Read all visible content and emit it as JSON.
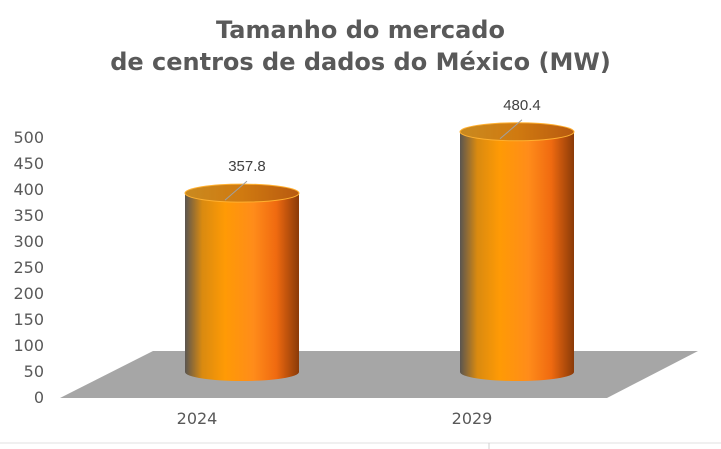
{
  "chart_data": {
    "type": "bar",
    "title_lines": [
      "Tamanho do mercado",
      "de centros de dados do México (MW)"
    ],
    "categories": [
      "2024",
      "2029"
    ],
    "values": [
      357.8,
      480.4
    ],
    "value_labels": [
      "357.8",
      "480.4"
    ],
    "ylim": [
      0,
      500
    ],
    "yticks": [
      "0",
      "50",
      "100",
      "150",
      "200",
      "250",
      "300",
      "350",
      "400",
      "450",
      "500"
    ],
    "xlabel": "",
    "ylabel": "",
    "grid": false,
    "bar_color": "#FF9900",
    "floor_color": "#A6A6A6"
  }
}
